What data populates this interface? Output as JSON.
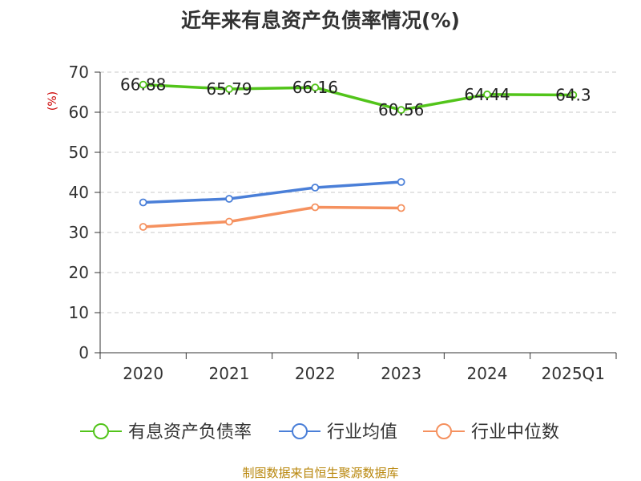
{
  "chart_data": {
    "type": "line",
    "title": "近年来有息资产负债率情况(%)",
    "ylabel": "(%)",
    "categories": [
      "2020",
      "2021",
      "2022",
      "2023",
      "2024",
      "2025Q1"
    ],
    "ylim": [
      0,
      70
    ],
    "yticks": [
      "0",
      "10",
      "20",
      "30",
      "40",
      "50",
      "60",
      "70"
    ],
    "grid": true,
    "legend_position": "bottom",
    "series": [
      {
        "name": "有息资产负债率",
        "color": "#52c41a",
        "values": [
          66.88,
          65.79,
          66.16,
          60.56,
          64.44,
          64.3
        ],
        "labels": [
          "66.88",
          "65.79",
          "66.16",
          "60.56",
          "64.44",
          "64.3"
        ]
      },
      {
        "name": "行业均值",
        "color": "#4a7fd8",
        "values": [
          37.5,
          38.4,
          41.2,
          42.6,
          null,
          null
        ]
      },
      {
        "name": "行业中位数",
        "color": "#f5915f",
        "values": [
          31.4,
          32.7,
          36.3,
          36.1,
          null,
          null
        ]
      }
    ]
  },
  "footer": {
    "source": "制图数据来自恒生聚源数据库"
  }
}
